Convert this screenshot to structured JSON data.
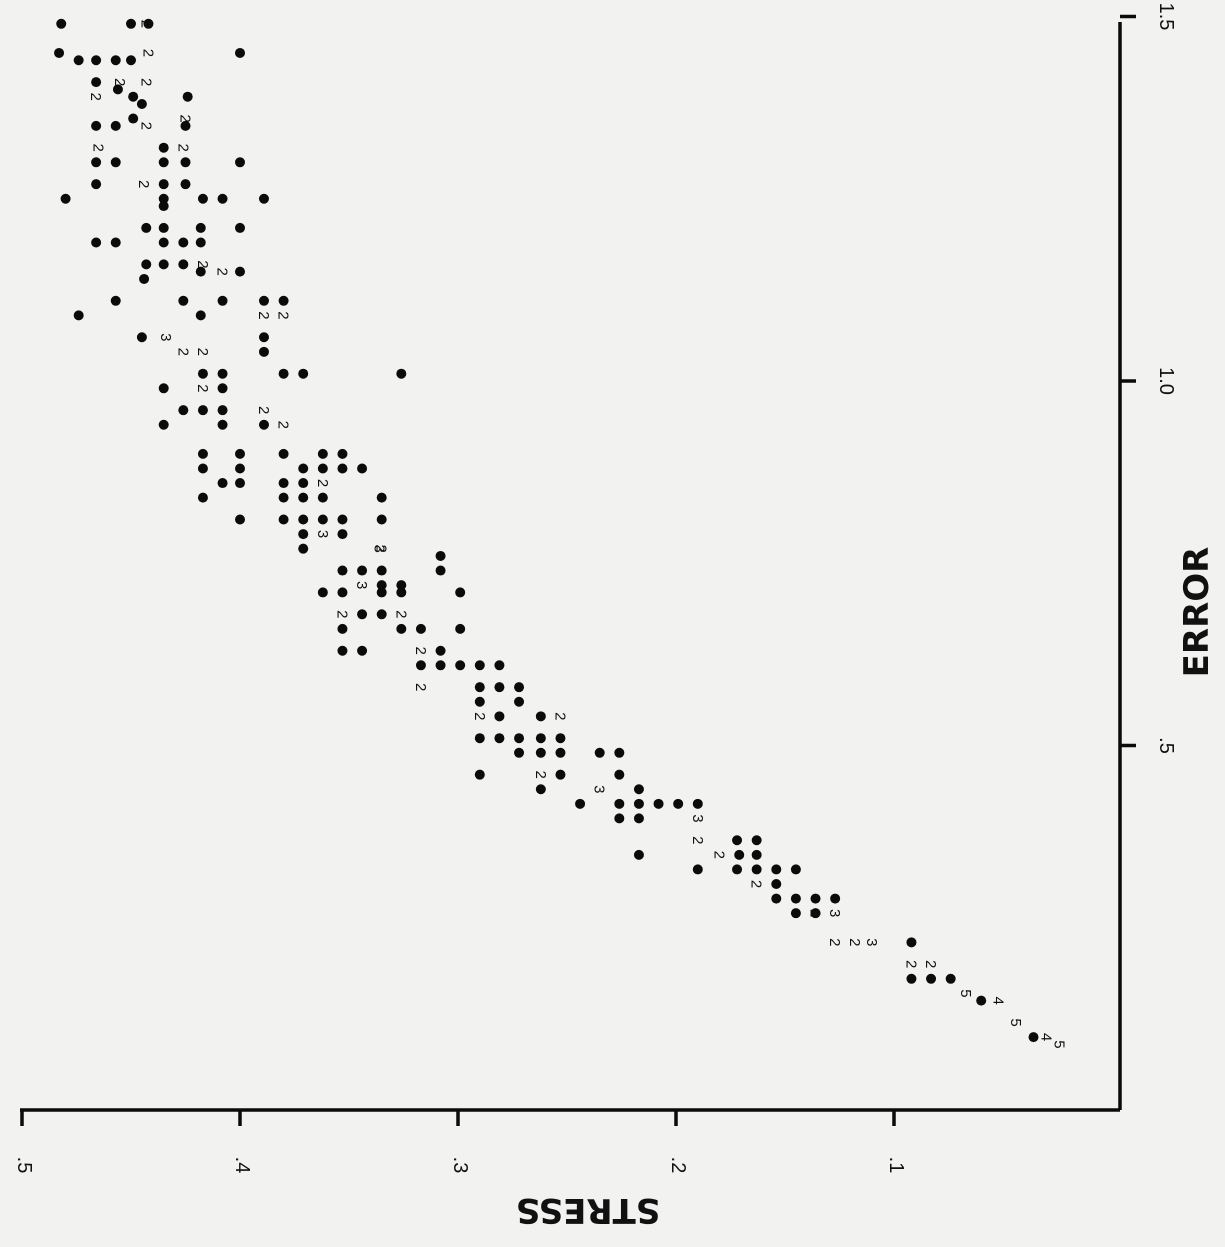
{
  "chart_data": {
    "type": "scatter",
    "title": "",
    "xlabel": "ERROR",
    "ylabel": "STRESS",
    "xlim": [
      0,
      1.5
    ],
    "ylim": [
      0.05,
      0.5
    ],
    "x_ticks": [
      ".5",
      "1.0",
      "1.5"
    ],
    "y_ticks": [
      ".5",
      ".4",
      ".3",
      ".2",
      ".1"
    ],
    "grid": false,
    "legend": "none",
    "orientation": "rotated 90° clockwise (x axis vertical, y axis horizontal)",
    "points": [
      {
        "x": 1.49,
        "y": 0.482
      },
      {
        "x": 1.49,
        "y": 0.45
      },
      {
        "x": 1.49,
        "y": 0.442
      },
      {
        "x": 1.49,
        "y": 0.443,
        "label": "2"
      },
      {
        "x": 1.45,
        "y": 0.483
      },
      {
        "x": 1.45,
        "y": 0.442,
        "label": "2"
      },
      {
        "x": 1.45,
        "y": 0.4
      },
      {
        "x": 1.44,
        "y": 0.474
      },
      {
        "x": 1.44,
        "y": 0.466
      },
      {
        "x": 1.44,
        "y": 0.457
      },
      {
        "x": 1.44,
        "y": 0.45
      },
      {
        "x": 1.41,
        "y": 0.466
      },
      {
        "x": 1.41,
        "y": 0.455,
        "label": "2"
      },
      {
        "x": 1.41,
        "y": 0.443,
        "label": "2"
      },
      {
        "x": 1.4,
        "y": 0.456
      },
      {
        "x": 1.39,
        "y": 0.466,
        "label": "2"
      },
      {
        "x": 1.39,
        "y": 0.449
      },
      {
        "x": 1.39,
        "y": 0.424
      },
      {
        "x": 1.38,
        "y": 0.445
      },
      {
        "x": 1.36,
        "y": 0.449
      },
      {
        "x": 1.36,
        "y": 0.425,
        "label": "2"
      },
      {
        "x": 1.35,
        "y": 0.466
      },
      {
        "x": 1.35,
        "y": 0.457
      },
      {
        "x": 1.35,
        "y": 0.443,
        "label": "2"
      },
      {
        "x": 1.35,
        "y": 0.425
      },
      {
        "x": 1.32,
        "y": 0.465,
        "label": "2"
      },
      {
        "x": 1.32,
        "y": 0.435
      },
      {
        "x": 1.32,
        "y": 0.426,
        "label": "2"
      },
      {
        "x": 1.3,
        "y": 0.466
      },
      {
        "x": 1.3,
        "y": 0.457
      },
      {
        "x": 1.3,
        "y": 0.435
      },
      {
        "x": 1.3,
        "y": 0.425
      },
      {
        "x": 1.3,
        "y": 0.4
      },
      {
        "x": 1.27,
        "y": 0.466
      },
      {
        "x": 1.27,
        "y": 0.444,
        "label": "2"
      },
      {
        "x": 1.27,
        "y": 0.435
      },
      {
        "x": 1.27,
        "y": 0.425
      },
      {
        "x": 1.25,
        "y": 0.48
      },
      {
        "x": 1.25,
        "y": 0.435
      },
      {
        "x": 1.25,
        "y": 0.417
      },
      {
        "x": 1.25,
        "y": 0.408
      },
      {
        "x": 1.25,
        "y": 0.389
      },
      {
        "x": 1.24,
        "y": 0.435
      },
      {
        "x": 1.21,
        "y": 0.443
      },
      {
        "x": 1.21,
        "y": 0.435
      },
      {
        "x": 1.21,
        "y": 0.418
      },
      {
        "x": 1.21,
        "y": 0.4
      },
      {
        "x": 1.19,
        "y": 0.466
      },
      {
        "x": 1.19,
        "y": 0.457
      },
      {
        "x": 1.19,
        "y": 0.435
      },
      {
        "x": 1.19,
        "y": 0.426
      },
      {
        "x": 1.19,
        "y": 0.418
      },
      {
        "x": 1.16,
        "y": 0.443
      },
      {
        "x": 1.16,
        "y": 0.435
      },
      {
        "x": 1.16,
        "y": 0.426
      },
      {
        "x": 1.16,
        "y": 0.417,
        "label": "2"
      },
      {
        "x": 1.15,
        "y": 0.418
      },
      {
        "x": 1.15,
        "y": 0.4
      },
      {
        "x": 1.15,
        "y": 0.408,
        "label": "2"
      },
      {
        "x": 1.14,
        "y": 0.444
      },
      {
        "x": 1.11,
        "y": 0.457
      },
      {
        "x": 1.11,
        "y": 0.426
      },
      {
        "x": 1.11,
        "y": 0.408
      },
      {
        "x": 1.11,
        "y": 0.389
      },
      {
        "x": 1.11,
        "y": 0.38
      },
      {
        "x": 1.09,
        "y": 0.474
      },
      {
        "x": 1.09,
        "y": 0.418
      },
      {
        "x": 1.09,
        "y": 0.389,
        "label": "2"
      },
      {
        "x": 1.09,
        "y": 0.38,
        "label": "2"
      },
      {
        "x": 1.06,
        "y": 0.445
      },
      {
        "x": 1.06,
        "y": 0.434,
        "label": "3"
      },
      {
        "x": 1.06,
        "y": 0.389
      },
      {
        "x": 1.04,
        "y": 0.426,
        "label": "2"
      },
      {
        "x": 1.04,
        "y": 0.389
      },
      {
        "x": 1.04,
        "y": 0.417,
        "label": "2"
      },
      {
        "x": 1.01,
        "y": 0.417
      },
      {
        "x": 1.01,
        "y": 0.408
      },
      {
        "x": 1.01,
        "y": 0.38
      },
      {
        "x": 1.01,
        "y": 0.371
      },
      {
        "x": 1.01,
        "y": 0.326
      },
      {
        "x": 0.99,
        "y": 0.435
      },
      {
        "x": 0.99,
        "y": 0.417,
        "label": "2"
      },
      {
        "x": 0.99,
        "y": 0.408
      },
      {
        "x": 0.96,
        "y": 0.426
      },
      {
        "x": 0.96,
        "y": 0.417
      },
      {
        "x": 0.96,
        "y": 0.408
      },
      {
        "x": 0.96,
        "y": 0.389,
        "label": "2"
      },
      {
        "x": 0.94,
        "y": 0.435
      },
      {
        "x": 0.94,
        "y": 0.408
      },
      {
        "x": 0.94,
        "y": 0.389
      },
      {
        "x": 0.94,
        "y": 0.38,
        "label": "2"
      },
      {
        "x": 0.9,
        "y": 0.417
      },
      {
        "x": 0.9,
        "y": 0.4
      },
      {
        "x": 0.9,
        "y": 0.38
      },
      {
        "x": 0.9,
        "y": 0.362
      },
      {
        "x": 0.9,
        "y": 0.353
      },
      {
        "x": 0.88,
        "y": 0.417
      },
      {
        "x": 0.88,
        "y": 0.4
      },
      {
        "x": 0.88,
        "y": 0.371
      },
      {
        "x": 0.88,
        "y": 0.362
      },
      {
        "x": 0.88,
        "y": 0.353
      },
      {
        "x": 0.88,
        "y": 0.344
      },
      {
        "x": 0.86,
        "y": 0.408
      },
      {
        "x": 0.86,
        "y": 0.4
      },
      {
        "x": 0.86,
        "y": 0.38
      },
      {
        "x": 0.86,
        "y": 0.371
      },
      {
        "x": 0.86,
        "y": 0.362,
        "label": "2"
      },
      {
        "x": 0.84,
        "y": 0.417
      },
      {
        "x": 0.84,
        "y": 0.38
      },
      {
        "x": 0.84,
        "y": 0.371
      },
      {
        "x": 0.84,
        "y": 0.362
      },
      {
        "x": 0.84,
        "y": 0.335
      },
      {
        "x": 0.81,
        "y": 0.4
      },
      {
        "x": 0.81,
        "y": 0.38
      },
      {
        "x": 0.81,
        "y": 0.371
      },
      {
        "x": 0.81,
        "y": 0.362
      },
      {
        "x": 0.81,
        "y": 0.353
      },
      {
        "x": 0.81,
        "y": 0.335
      },
      {
        "x": 0.79,
        "y": 0.371
      },
      {
        "x": 0.79,
        "y": 0.362,
        "label": "3"
      },
      {
        "x": 0.79,
        "y": 0.353
      },
      {
        "x": 0.77,
        "y": 0.371
      },
      {
        "x": 0.77,
        "y": 0.336,
        "label": "3"
      },
      {
        "x": 0.77,
        "y": 0.335,
        "label": "2"
      },
      {
        "x": 0.76,
        "y": 0.308
      },
      {
        "x": 0.74,
        "y": 0.353
      },
      {
        "x": 0.74,
        "y": 0.344
      },
      {
        "x": 0.74,
        "y": 0.335
      },
      {
        "x": 0.74,
        "y": 0.308
      },
      {
        "x": 0.72,
        "y": 0.344,
        "label": "3"
      },
      {
        "x": 0.72,
        "y": 0.335
      },
      {
        "x": 0.72,
        "y": 0.326
      },
      {
        "x": 0.71,
        "y": 0.362
      },
      {
        "x": 0.71,
        "y": 0.353
      },
      {
        "x": 0.71,
        "y": 0.335
      },
      {
        "x": 0.71,
        "y": 0.326
      },
      {
        "x": 0.71,
        "y": 0.299
      },
      {
        "x": 0.68,
        "y": 0.353,
        "label": "2"
      },
      {
        "x": 0.68,
        "y": 0.344
      },
      {
        "x": 0.68,
        "y": 0.335
      },
      {
        "x": 0.68,
        "y": 0.326,
        "label": "2"
      },
      {
        "x": 0.66,
        "y": 0.353
      },
      {
        "x": 0.66,
        "y": 0.326
      },
      {
        "x": 0.66,
        "y": 0.317
      },
      {
        "x": 0.66,
        "y": 0.299
      },
      {
        "x": 0.63,
        "y": 0.353
      },
      {
        "x": 0.63,
        "y": 0.344
      },
      {
        "x": 0.63,
        "y": 0.317,
        "label": "2"
      },
      {
        "x": 0.63,
        "y": 0.308
      },
      {
        "x": 0.61,
        "y": 0.317
      },
      {
        "x": 0.61,
        "y": 0.308
      },
      {
        "x": 0.61,
        "y": 0.299
      },
      {
        "x": 0.61,
        "y": 0.29
      },
      {
        "x": 0.61,
        "y": 0.281
      },
      {
        "x": 0.58,
        "y": 0.317,
        "label": "2"
      },
      {
        "x": 0.58,
        "y": 0.29
      },
      {
        "x": 0.58,
        "y": 0.281
      },
      {
        "x": 0.58,
        "y": 0.272
      },
      {
        "x": 0.56,
        "y": 0.29
      },
      {
        "x": 0.56,
        "y": 0.272
      },
      {
        "x": 0.54,
        "y": 0.29,
        "label": "2"
      },
      {
        "x": 0.54,
        "y": 0.281
      },
      {
        "x": 0.54,
        "y": 0.262
      },
      {
        "x": 0.54,
        "y": 0.253,
        "label": "2"
      },
      {
        "x": 0.51,
        "y": 0.29
      },
      {
        "x": 0.51,
        "y": 0.281
      },
      {
        "x": 0.51,
        "y": 0.272
      },
      {
        "x": 0.51,
        "y": 0.262
      },
      {
        "x": 0.51,
        "y": 0.253
      },
      {
        "x": 0.49,
        "y": 0.272
      },
      {
        "x": 0.49,
        "y": 0.262
      },
      {
        "x": 0.49,
        "y": 0.253
      },
      {
        "x": 0.49,
        "y": 0.235
      },
      {
        "x": 0.49,
        "y": 0.226
      },
      {
        "x": 0.46,
        "y": 0.29
      },
      {
        "x": 0.46,
        "y": 0.262,
        "label": "2"
      },
      {
        "x": 0.46,
        "y": 0.253
      },
      {
        "x": 0.46,
        "y": 0.226
      },
      {
        "x": 0.44,
        "y": 0.262
      },
      {
        "x": 0.44,
        "y": 0.235,
        "label": "3"
      },
      {
        "x": 0.44,
        "y": 0.217
      },
      {
        "x": 0.42,
        "y": 0.244
      },
      {
        "x": 0.42,
        "y": 0.226
      },
      {
        "x": 0.42,
        "y": 0.217
      },
      {
        "x": 0.42,
        "y": 0.208
      },
      {
        "x": 0.42,
        "y": 0.199
      },
      {
        "x": 0.42,
        "y": 0.19
      },
      {
        "x": 0.4,
        "y": 0.226
      },
      {
        "x": 0.4,
        "y": 0.217
      },
      {
        "x": 0.4,
        "y": 0.19,
        "label": "3"
      },
      {
        "x": 0.37,
        "y": 0.19,
        "label": "2"
      },
      {
        "x": 0.37,
        "y": 0.172
      },
      {
        "x": 0.37,
        "y": 0.163
      },
      {
        "x": 0.35,
        "y": 0.217
      },
      {
        "x": 0.35,
        "y": 0.18,
        "label": "2"
      },
      {
        "x": 0.35,
        "y": 0.171
      },
      {
        "x": 0.35,
        "y": 0.163
      },
      {
        "x": 0.33,
        "y": 0.19
      },
      {
        "x": 0.33,
        "y": 0.172
      },
      {
        "x": 0.33,
        "y": 0.163
      },
      {
        "x": 0.33,
        "y": 0.154
      },
      {
        "x": 0.33,
        "y": 0.145
      },
      {
        "x": 0.31,
        "y": 0.163,
        "label": "2"
      },
      {
        "x": 0.31,
        "y": 0.154
      },
      {
        "x": 0.29,
        "y": 0.154
      },
      {
        "x": 0.29,
        "y": 0.145
      },
      {
        "x": 0.29,
        "y": 0.136
      },
      {
        "x": 0.29,
        "y": 0.127
      },
      {
        "x": 0.27,
        "y": 0.145
      },
      {
        "x": 0.27,
        "y": 0.136
      },
      {
        "x": 0.27,
        "y": 0.136,
        "label": "2"
      },
      {
        "x": 0.27,
        "y": 0.127,
        "label": "3"
      },
      {
        "x": 0.23,
        "y": 0.127,
        "label": "2"
      },
      {
        "x": 0.23,
        "y": 0.118,
        "label": "2"
      },
      {
        "x": 0.23,
        "y": 0.11,
        "label": "3"
      },
      {
        "x": 0.23,
        "y": 0.092
      },
      {
        "x": 0.2,
        "y": 0.092,
        "label": "2"
      },
      {
        "x": 0.2,
        "y": 0.083,
        "label": "2"
      },
      {
        "x": 0.18,
        "y": 0.092
      },
      {
        "x": 0.18,
        "y": 0.083
      },
      {
        "x": 0.18,
        "y": 0.074
      },
      {
        "x": 0.16,
        "y": 0.067,
        "label": "5"
      },
      {
        "x": 0.15,
        "y": 0.06
      },
      {
        "x": 0.15,
        "y": 0.052,
        "label": "4"
      },
      {
        "x": 0.12,
        "y": 0.044,
        "label": "5"
      },
      {
        "x": 0.1,
        "y": 0.036
      },
      {
        "x": 0.1,
        "y": 0.03,
        "label": "4"
      },
      {
        "x": 0.09,
        "y": 0.024,
        "label": "5"
      }
    ]
  }
}
